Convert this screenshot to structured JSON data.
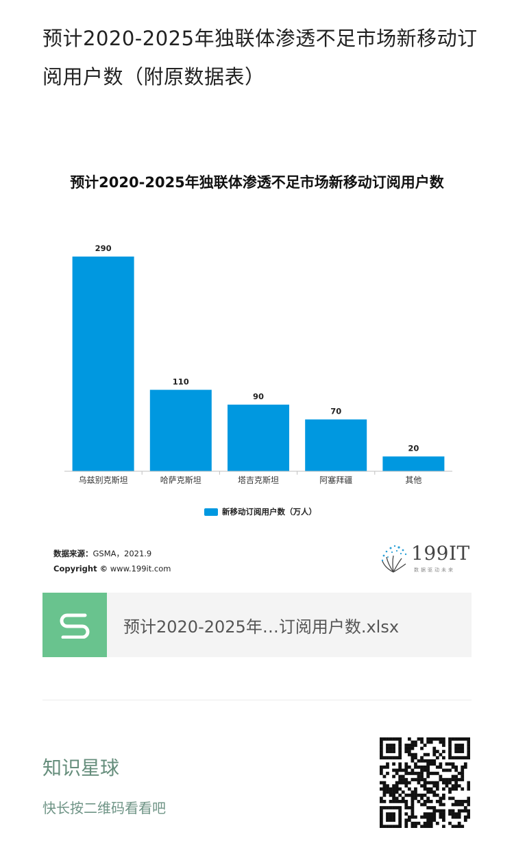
{
  "article": {
    "title": "预计2020-2025年独联体渗透不足市场新移动订阅用户数（附原数据表）"
  },
  "chart_data": {
    "type": "bar",
    "title": "预计2020-2025年独联体渗透不足市场新移动订阅用户数",
    "categories": [
      "乌兹别克斯坦",
      "哈萨克斯坦",
      "塔吉克斯坦",
      "阿塞拜疆",
      "其他"
    ],
    "series": [
      {
        "name": "新移动订阅用户数（万人）",
        "values": [
          290,
          110,
          90,
          70,
          20
        ]
      }
    ],
    "ylim": [
      0,
      290
    ],
    "grid": false,
    "legend": "bottom-center",
    "data_labels": true,
    "bar_color": "#0098e0"
  },
  "source": {
    "label": "数据来源：",
    "value": "GSMA，2021.9",
    "copyright_label": "Copyright ©",
    "copyright_value": "www.199it.com"
  },
  "logo": {
    "text": "199IT",
    "slogan": "数据驱动未来"
  },
  "attachment": {
    "icon": "spreadsheet-s-icon",
    "icon_color": "#69c38e",
    "filename": "预计2020-2025年…订阅用户数.xlsx"
  },
  "knowledge_planet": {
    "name": "知识星球",
    "hint": "快长按二维码看看吧"
  }
}
